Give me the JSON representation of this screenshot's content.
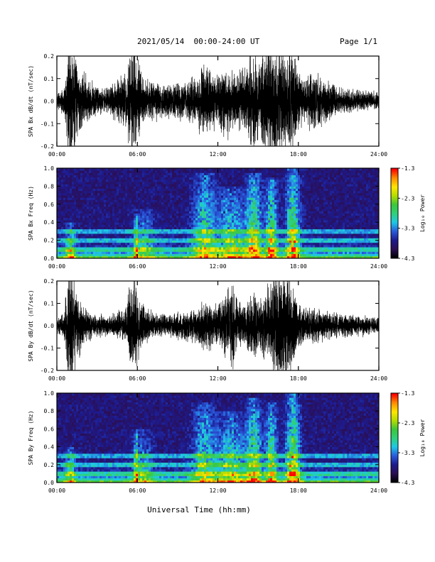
{
  "header": {
    "title": "2021/05/14  00:00-24:00 UT",
    "page": "Page 1/1"
  },
  "xlabel": "Universal Time (hh:mm)",
  "colors": {
    "trace": "#000000",
    "colorbar_stops": [
      "#000000",
      "#2a0f55",
      "#1d1b8f",
      "#2a5adc",
      "#1ec8e6",
      "#2ed17a",
      "#3cc63c",
      "#b4dc00",
      "#ffe600",
      "#ff8c00",
      "#ff0000"
    ]
  },
  "chart_data": [
    {
      "type": "line",
      "ylabel": "SPA Bx dB/dt (nT/sec)",
      "ylim": [
        -0.2,
        0.2
      ],
      "yticks": [
        -0.2,
        -0.1,
        0.0,
        0.1,
        0.2
      ],
      "ytick_labels": [
        "-0.2",
        "-0.1",
        "0.0",
        "0.1",
        "0.2"
      ],
      "xlim": [
        0,
        24
      ],
      "xticks": [
        0,
        6,
        12,
        18,
        24
      ],
      "xtick_labels": [
        "00:00",
        "06:00",
        "12:00",
        "18:00",
        "24:00"
      ],
      "envelope_hours": [
        0,
        0.5,
        0.8,
        1.2,
        1.6,
        2.5,
        3.5,
        4.5,
        5.2,
        5.6,
        6.0,
        6.5,
        7.5,
        8.5,
        9.5,
        10.5,
        11.0,
        11.5,
        12.0,
        12.5,
        13.0,
        13.5,
        14.0,
        14.5,
        15.0,
        15.5,
        16.0,
        16.5,
        17.0,
        17.3,
        17.7,
        18.0,
        18.5,
        19.0,
        20.0,
        21.0,
        22.0,
        23.0,
        24.0
      ],
      "envelope_amplitude": [
        0.03,
        0.05,
        0.22,
        0.22,
        0.15,
        0.07,
        0.05,
        0.08,
        0.12,
        0.24,
        0.18,
        0.09,
        0.07,
        0.07,
        0.08,
        0.1,
        0.15,
        0.12,
        0.1,
        0.15,
        0.12,
        0.12,
        0.15,
        0.22,
        0.15,
        0.22,
        0.24,
        0.24,
        0.2,
        0.22,
        0.2,
        0.12,
        0.08,
        0.14,
        0.08,
        0.06,
        0.05,
        0.04,
        0.035
      ]
    },
    {
      "type": "heatmap",
      "ylabel": "SPA Bx Freq (Hz)",
      "ylim": [
        0.0,
        1.0
      ],
      "yticks": [
        0.0,
        0.2,
        0.4,
        0.6,
        0.8,
        1.0
      ],
      "ytick_labels": [
        "0.0",
        "0.2",
        "0.4",
        "0.6",
        "0.8",
        "1.0"
      ],
      "xlim": [
        0,
        24
      ],
      "xticks": [
        0,
        6,
        12,
        18,
        24
      ],
      "xtick_labels": [
        "00:00",
        "06:00",
        "12:00",
        "18:00",
        "24:00"
      ],
      "colorbar_label": "Log₁₀ Power",
      "colorbar_range": [
        -4.3,
        -1.3
      ],
      "colorbar_ticks": [
        "-1.3",
        "-2.3",
        "-3.3",
        "-4.3"
      ],
      "persistent_lines_hz": [
        0.08,
        0.12,
        0.2,
        0.3
      ],
      "bursts": [
        {
          "hour": 1.0,
          "width": 0.5,
          "fmax": 0.4,
          "strength": 0.5
        },
        {
          "hour": 5.9,
          "width": 0.15,
          "fmax": 0.5,
          "strength": 0.7
        },
        {
          "hour": 6.5,
          "width": 1.2,
          "fmax": 0.55,
          "strength": 0.35
        },
        {
          "hour": 11.0,
          "width": 1.2,
          "fmax": 0.95,
          "strength": 0.55
        },
        {
          "hour": 13.0,
          "width": 1.5,
          "fmax": 0.8,
          "strength": 0.5
        },
        {
          "hour": 14.7,
          "width": 0.8,
          "fmax": 0.95,
          "strength": 0.7
        },
        {
          "hour": 16.0,
          "width": 0.6,
          "fmax": 0.9,
          "strength": 0.7
        },
        {
          "hour": 17.6,
          "width": 0.7,
          "fmax": 1.0,
          "strength": 0.75
        }
      ]
    },
    {
      "type": "line",
      "ylabel": "SPA By dB/dt (nT/sec)",
      "ylim": [
        -0.2,
        0.2
      ],
      "yticks": [
        -0.2,
        -0.1,
        0.0,
        0.1,
        0.2
      ],
      "ytick_labels": [
        "-0.2",
        "-0.1",
        "0.0",
        "0.1",
        "0.2"
      ],
      "xlim": [
        0,
        24
      ],
      "xticks": [
        0,
        6,
        12,
        18,
        24
      ],
      "xtick_labels": [
        "00:00",
        "06:00",
        "12:00",
        "18:00",
        "24:00"
      ],
      "envelope_hours": [
        0,
        0.5,
        0.8,
        1.2,
        1.6,
        2.5,
        3.5,
        4.5,
        5.2,
        5.7,
        6.0,
        6.5,
        7.5,
        8.5,
        9.5,
        10.5,
        11.0,
        11.5,
        12.0,
        12.5,
        13.0,
        13.5,
        14.0,
        14.5,
        15.0,
        15.5,
        16.0,
        16.5,
        17.0,
        17.3,
        17.7,
        18.0,
        18.5,
        19.0,
        20.0,
        21.0,
        22.0,
        23.0,
        24.0
      ],
      "envelope_amplitude": [
        0.03,
        0.05,
        0.22,
        0.22,
        0.12,
        0.05,
        0.04,
        0.05,
        0.09,
        0.22,
        0.15,
        0.08,
        0.05,
        0.05,
        0.06,
        0.07,
        0.1,
        0.09,
        0.08,
        0.12,
        0.2,
        0.1,
        0.08,
        0.14,
        0.12,
        0.13,
        0.2,
        0.22,
        0.24,
        0.22,
        0.16,
        0.1,
        0.07,
        0.08,
        0.06,
        0.05,
        0.045,
        0.04,
        0.035
      ]
    },
    {
      "type": "heatmap",
      "ylabel": "SPA By Freq (Hz)",
      "ylim": [
        0.0,
        1.0
      ],
      "yticks": [
        0.0,
        0.2,
        0.4,
        0.6,
        0.8,
        1.0
      ],
      "ytick_labels": [
        "0.0",
        "0.2",
        "0.4",
        "0.6",
        "0.8",
        "1.0"
      ],
      "xlim": [
        0,
        24
      ],
      "xticks": [
        0,
        6,
        12,
        18,
        24
      ],
      "xtick_labels": [
        "00:00",
        "06:00",
        "12:00",
        "18:00",
        "24:00"
      ],
      "colorbar_label": "Log₁₀ Power",
      "colorbar_range": [
        -4.3,
        -1.3
      ],
      "colorbar_ticks": [
        "-1.3",
        "-2.3",
        "-3.3",
        "-4.3"
      ],
      "persistent_lines_hz": [
        0.08,
        0.12,
        0.2,
        0.3
      ],
      "bursts": [
        {
          "hour": 1.0,
          "width": 0.5,
          "fmax": 0.4,
          "strength": 0.5
        },
        {
          "hour": 5.9,
          "width": 0.15,
          "fmax": 0.6,
          "strength": 0.7
        },
        {
          "hour": 6.4,
          "width": 1.0,
          "fmax": 0.6,
          "strength": 0.35
        },
        {
          "hour": 11.0,
          "width": 1.2,
          "fmax": 0.9,
          "strength": 0.5
        },
        {
          "hour": 13.0,
          "width": 1.5,
          "fmax": 0.8,
          "strength": 0.5
        },
        {
          "hour": 14.7,
          "width": 0.8,
          "fmax": 0.95,
          "strength": 0.65
        },
        {
          "hour": 16.0,
          "width": 0.6,
          "fmax": 0.9,
          "strength": 0.65
        },
        {
          "hour": 17.6,
          "width": 0.7,
          "fmax": 1.0,
          "strength": 0.75
        }
      ]
    }
  ]
}
